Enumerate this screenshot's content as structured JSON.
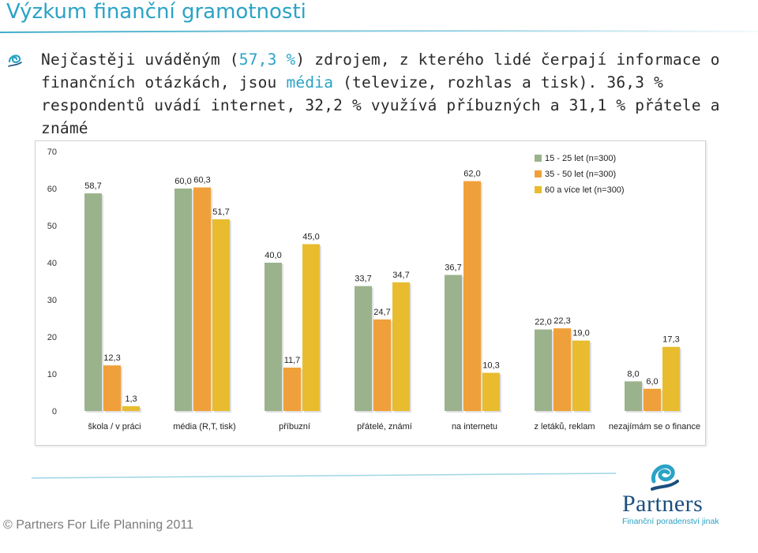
{
  "slide": {
    "title": "Výzkum finanční gramotnosti",
    "intro": {
      "part1": "Nejčastěji uváděným (",
      "highlight1": "57,3 %",
      "part2": ") zdrojem, z kterého lidé čerpají informace o finančních otázkách, jsou ",
      "highlight2": "média",
      "part3": " (televize, rozhlas a tisk). 36,3 % respondentů uvádí internet, 32,2 % využívá příbuzných a 31,1 % přátele a známé"
    }
  },
  "chart_data": {
    "type": "bar",
    "categories": [
      "škola / v práci",
      "média (R,T, tisk)",
      "příbuzní",
      "přátelé, známí",
      "na internetu",
      "z letáků, reklam",
      "nezajímám se o finance"
    ],
    "series": [
      {
        "name": "15 - 25 let (n=300)",
        "color": "#9bb38c",
        "values": [
          58.7,
          60.0,
          40.0,
          33.7,
          36.7,
          22.0,
          8.0
        ],
        "labels": [
          "58,7",
          "60,0",
          "40,0",
          "33,7",
          "36,7",
          "22,0",
          "8,0"
        ]
      },
      {
        "name": "35 - 50 let (n=300)",
        "color": "#f0a03a",
        "values": [
          12.3,
          60.3,
          11.7,
          24.7,
          62.0,
          22.3,
          6.0
        ],
        "labels": [
          "12,3",
          "60,3",
          "11,7",
          "24,7",
          "62,0",
          "22,3",
          "6,0"
        ]
      },
      {
        "name": "60 a více let (n=300)",
        "color": "#e8bc2e",
        "values": [
          1.3,
          51.7,
          45.0,
          34.7,
          10.3,
          19.0,
          17.3
        ],
        "labels": [
          "1,3",
          "51,7",
          "45,0",
          "34,7",
          "10,3",
          "19,0",
          "17,3"
        ]
      }
    ],
    "ylim": [
      0,
      70
    ],
    "yticks": [
      "0",
      "10",
      "20",
      "30",
      "40",
      "50",
      "60",
      "70"
    ],
    "legend_position": "top-right",
    "grid": false,
    "title": "",
    "xlabel": "",
    "ylabel": ""
  },
  "footer": {
    "copyright": "© Partners For Life Planning 2011",
    "logo_name": "Partners",
    "logo_tagline": "Finanční poradenství jinak"
  },
  "colors": {
    "accent": "#2aa3c6",
    "brand": "#1b4f7e"
  }
}
